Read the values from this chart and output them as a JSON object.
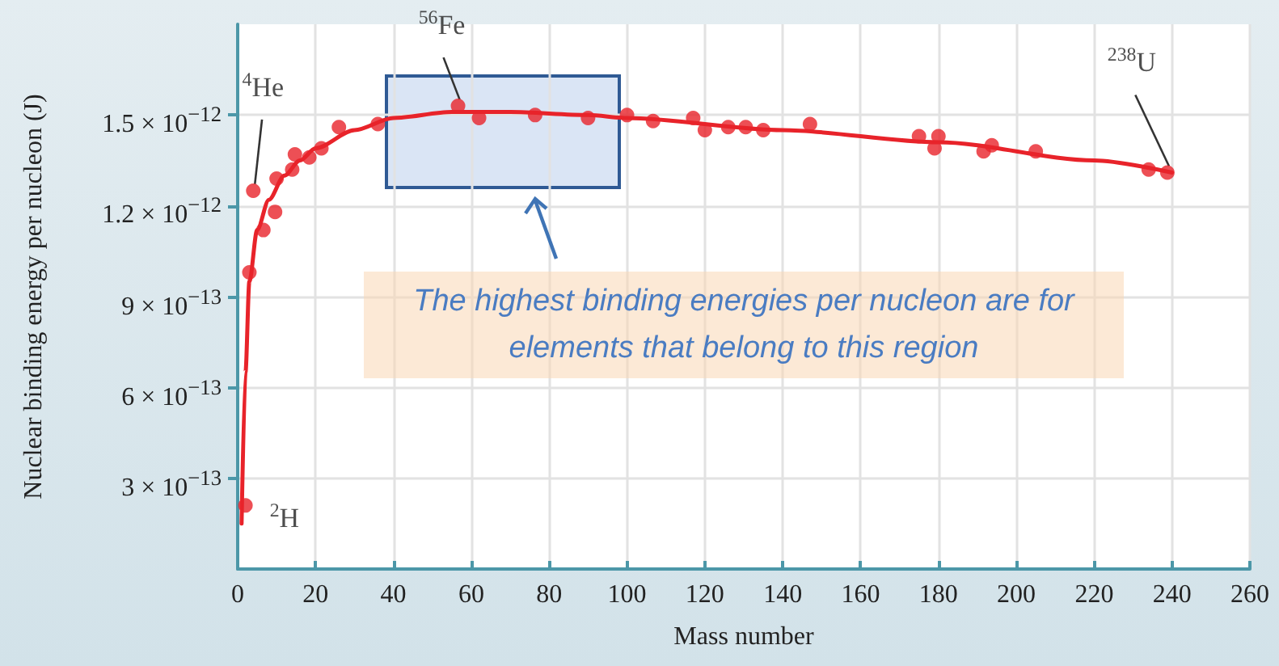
{
  "chart_data": {
    "type": "scatter",
    "xlabel": "Mass number",
    "ylabel": "Nuclear binding energy per nucleon (J)",
    "xlim": [
      0,
      260
    ],
    "xticks": [
      0,
      20,
      40,
      60,
      80,
      100,
      120,
      140,
      160,
      180,
      200,
      220,
      240,
      260
    ],
    "ylim": [
      0,
      1.8e-12
    ],
    "yticks": [
      {
        "value": 3e-13,
        "label": "3 × 10$^{−13}$"
      },
      {
        "value": 6e-13,
        "label": "6 × 10$^{−13}$"
      },
      {
        "value": 9e-13,
        "label": "9 × 10$^{−13}$"
      },
      {
        "value": 1.2e-12,
        "label": "1.2 × 10$^{−12}$"
      },
      {
        "value": 1.5e-12,
        "label": "1.5 × 10$^{−12}$"
      }
    ],
    "grid": true,
    "marker": "circle",
    "series": [
      {
        "type": "scatter",
        "color": "#e8232a",
        "x": [
          2,
          3,
          4,
          6.6,
          9.6,
          10,
          14,
          14.7,
          18.4,
          21.5,
          26,
          36,
          56.6,
          62,
          76.4,
          90,
          100,
          106.7,
          117,
          120,
          126,
          130.5,
          135,
          147,
          175,
          179,
          180,
          191.6,
          193.7,
          205,
          234,
          238.8
        ],
        "values": [
          2.1e-13,
          9.8e-13,
          1.25e-12,
          1.12e-12,
          1.18e-12,
          1.29e-12,
          1.32e-12,
          1.37e-12,
          1.36e-12,
          1.39e-12,
          1.46e-12,
          1.47e-12,
          1.53e-12,
          1.49e-12,
          1.5e-12,
          1.49e-12,
          1.5e-12,
          1.48e-12,
          1.49e-12,
          1.45e-12,
          1.46e-12,
          1.46e-12,
          1.45e-12,
          1.47e-12,
          1.43e-12,
          1.39e-12,
          1.43e-12,
          1.38e-12,
          1.4e-12,
          1.38e-12,
          1.32e-12,
          1.31e-12
        ]
      },
      {
        "type": "line",
        "color": "#e8232a",
        "marker": "none",
        "x": [
          1,
          2,
          3,
          5,
          8,
          12,
          16,
          20,
          30,
          40,
          55,
          70,
          90,
          100,
          140,
          180,
          220,
          240
        ],
        "values": [
          1.5e-13,
          6.5e-13,
          9.5e-13,
          1.12e-12,
          1.22e-12,
          1.3e-12,
          1.35e-12,
          1.39e-12,
          1.45e-12,
          1.49e-12,
          1.51e-12,
          1.51e-12,
          1.5e-12,
          1.49e-12,
          1.45e-12,
          1.41e-12,
          1.35e-12,
          1.31e-12
        ]
      }
    ],
    "annotations": [
      {
        "text": "$^{2}$H",
        "x": 2,
        "y": 2.1e-13
      },
      {
        "text": "$^{4}$He",
        "x": 4,
        "y": 1.25e-12
      },
      {
        "text": "$^{56}$Fe",
        "x": 56.6,
        "y": 1.53e-12
      },
      {
        "text": "$^{238}$U",
        "x": 238.8,
        "y": 1.31e-12
      },
      "The highest binding energies per nucleon are for elements that belong to this region"
    ]
  }
}
